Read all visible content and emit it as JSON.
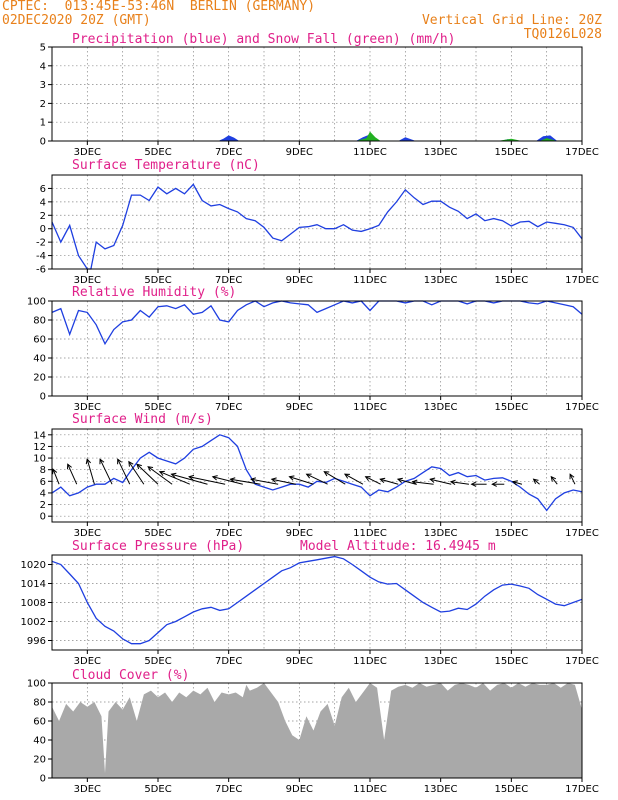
{
  "header": {
    "source_line": "CPTEC:  013:45E-53:46N  BERLIN (GERMANY)",
    "date_line": "02DEC2020 20Z (GMT)",
    "grid_note": "Vertical Grid Line: 20Z",
    "code": "TQ0126L028"
  },
  "colors": {
    "header": "#e8801a",
    "title": "#e0208a",
    "series_line": "#1f3fe0",
    "precip_blue": "#1f3fe0",
    "snow_green": "#22b022",
    "cloud_gray": "#a9a9a9"
  },
  "x_ticks": [
    "3DEC",
    "5DEC",
    "7DEC",
    "9DEC",
    "11DEC",
    "13DEC",
    "15DEC",
    "17DEC"
  ],
  "chart_data": [
    {
      "type": "area",
      "title": "Precipitation (blue) and Snow Fall (green) (mm/h)",
      "ylim": [
        0,
        5
      ],
      "y_ticks": [
        "0",
        "1",
        "2",
        "3",
        "4",
        "5"
      ],
      "series": [
        {
          "name": "Precipitation",
          "x": [
            6.7,
            6.85,
            7.0,
            7.15,
            7.3,
            10.6,
            10.8,
            11.0,
            11.1,
            11.8,
            12.0,
            12.3,
            14.7,
            14.9,
            15.1,
            15.7,
            15.9,
            16.1,
            16.3
          ],
          "values": [
            0,
            0.12,
            0.3,
            0.18,
            0,
            0,
            0.2,
            0.35,
            0,
            0,
            0.2,
            0,
            0,
            0.1,
            0,
            0,
            0.25,
            0.3,
            0
          ]
        },
        {
          "name": "Snow Fall",
          "x": [
            10.6,
            10.9,
            11.0,
            11.15,
            11.3,
            14.6,
            15.0,
            15.3,
            15.8,
            16.0,
            16.3
          ],
          "values": [
            0,
            0.15,
            0.5,
            0.2,
            0,
            0,
            0.12,
            0,
            0,
            0.15,
            0
          ]
        }
      ]
    },
    {
      "type": "line",
      "title": "Surface Temperature (nC)",
      "ylim": [
        -6,
        8
      ],
      "y_ticks": [
        "-6",
        "-4",
        "-2",
        "0",
        "2",
        "4",
        "6"
      ],
      "series": [
        {
          "x": [
            2.0,
            2.25,
            2.5,
            2.75,
            3.0,
            3.1,
            3.25,
            3.5,
            3.75,
            4.0,
            4.25,
            4.5,
            4.75,
            5.0,
            5.25,
            5.5,
            5.75,
            6.0,
            6.25,
            6.5,
            6.75,
            7.0,
            7.25,
            7.5,
            7.75,
            8.0,
            8.25,
            8.5,
            8.75,
            9.0,
            9.25,
            9.5,
            9.75,
            10.0,
            10.25,
            10.5,
            10.75,
            11.0,
            11.25,
            11.5,
            11.75,
            12.0,
            12.25,
            12.5,
            12.75,
            13.0,
            13.25,
            13.5,
            13.75,
            14.0,
            14.25,
            14.5,
            14.75,
            15.0,
            15.25,
            15.5,
            15.75,
            16.0,
            16.25,
            16.5,
            16.75,
            17.0
          ],
          "values": [
            1,
            -2,
            0.5,
            -4,
            -6,
            -6,
            -2,
            -3,
            -2.5,
            0.5,
            5,
            5,
            4.2,
            6.2,
            5.2,
            6,
            5.2,
            6.6,
            4.2,
            3.4,
            3.6,
            3,
            2.5,
            1.5,
            1.2,
            0.2,
            -1.4,
            -1.8,
            -0.8,
            0.2,
            0.3,
            0.6,
            0,
            0,
            0.6,
            -0.2,
            -0.4,
            0,
            0.5,
            2.5,
            4,
            5.8,
            4.6,
            3.6,
            4.1,
            4.1,
            3.2,
            2.6,
            1.5,
            2.2,
            1.2,
            1.5,
            1.2,
            0.4,
            1,
            1.1,
            0.3,
            1,
            0.8,
            0.6,
            0.2,
            -1.5
          ]
        }
      ]
    },
    {
      "type": "line",
      "title": "Relative Humidity (%)",
      "ylim": [
        0,
        100
      ],
      "y_ticks": [
        "0",
        "20",
        "40",
        "60",
        "80",
        "100"
      ],
      "series": [
        {
          "x": [
            2.0,
            2.25,
            2.5,
            2.75,
            3.0,
            3.25,
            3.5,
            3.75,
            4.0,
            4.25,
            4.5,
            4.75,
            5.0,
            5.25,
            5.5,
            5.75,
            6.0,
            6.25,
            6.5,
            6.75,
            7.0,
            7.25,
            7.5,
            7.75,
            8.0,
            8.25,
            8.5,
            8.75,
            9.0,
            9.25,
            9.5,
            9.75,
            10.0,
            10.25,
            10.5,
            10.75,
            11.0,
            11.25,
            11.5,
            11.75,
            12.0,
            12.25,
            12.5,
            12.75,
            13.0,
            13.25,
            13.5,
            13.75,
            14.0,
            14.25,
            14.5,
            14.75,
            15.0,
            15.25,
            15.5,
            15.75,
            16.0,
            16.25,
            16.5,
            16.75,
            17.0
          ],
          "values": [
            88,
            92,
            65,
            90,
            88,
            75,
            55,
            70,
            78,
            80,
            90,
            83,
            94,
            95,
            92,
            96,
            86,
            88,
            95,
            80,
            78,
            90,
            96,
            100,
            94,
            98,
            100,
            98,
            97,
            96,
            88,
            92,
            96,
            100,
            98,
            100,
            90,
            100,
            100,
            100,
            98,
            100,
            100,
            96,
            100,
            100,
            100,
            97,
            100,
            100,
            98,
            100,
            100,
            100,
            98,
            97,
            100,
            98,
            96,
            94,
            86
          ]
        }
      ]
    },
    {
      "type": "line",
      "title": "Surface Wind (m/s)",
      "ylim": [
        -1,
        15
      ],
      "y_ticks": [
        "0",
        "2",
        "4",
        "6",
        "8",
        "10",
        "12",
        "14"
      ],
      "series": [
        {
          "x": [
            2.0,
            2.25,
            2.5,
            2.75,
            3.0,
            3.25,
            3.5,
            3.75,
            4.0,
            4.25,
            4.5,
            4.75,
            5.0,
            5.25,
            5.5,
            5.75,
            6.0,
            6.25,
            6.5,
            6.75,
            7.0,
            7.25,
            7.5,
            7.75,
            8.0,
            8.25,
            8.5,
            8.75,
            9.0,
            9.25,
            9.5,
            9.75,
            10.0,
            10.25,
            10.5,
            10.75,
            11.0,
            11.25,
            11.5,
            11.75,
            12.0,
            12.25,
            12.5,
            12.75,
            13.0,
            13.25,
            13.5,
            13.75,
            14.0,
            14.25,
            14.5,
            14.75,
            15.0,
            15.25,
            15.5,
            15.75,
            16.0,
            16.25,
            16.5,
            16.75,
            17.0
          ],
          "values": [
            4,
            5,
            3.5,
            4,
            5,
            5.5,
            5.5,
            6.5,
            5.8,
            8,
            10,
            11,
            10,
            9.5,
            9,
            10,
            11.5,
            12,
            13,
            14,
            13.5,
            12,
            8,
            5.5,
            5,
            4.5,
            5,
            5.5,
            5.5,
            5,
            6,
            5.8,
            6.5,
            6,
            5.5,
            5,
            3.5,
            4.5,
            4.2,
            5,
            6,
            6.5,
            7.5,
            8.5,
            8.2,
            7,
            7.5,
            6.8,
            7,
            6.2,
            6.5,
            6.6,
            6,
            5,
            3.8,
            3,
            1,
            3,
            4,
            4.5,
            4.2
          ]
        }
      ],
      "wind_vectors": {
        "x": [
          2.2,
          2.7,
          3.2,
          3.7,
          4.2,
          4.6,
          5.0,
          5.4,
          5.9,
          6.4,
          6.9,
          7.4,
          7.9,
          8.4,
          8.9,
          9.4,
          9.8,
          10.3,
          10.8,
          11.3,
          11.8,
          12.3,
          12.8,
          13.3,
          13.8,
          14.3,
          14.8,
          15.3,
          15.8,
          16.3,
          16.8
        ],
        "u": [
          -1,
          -1.5,
          -1.2,
          -2,
          -2,
          -2.5,
          -3.5,
          -4,
          -5,
          -6,
          -6,
          -5,
          -5,
          -4.5,
          -4,
          -4,
          -3.5,
          -3.5,
          -3,
          -2.5,
          -3,
          -3,
          -3.5,
          -3.5,
          -3,
          -2.5,
          -2,
          -1.5,
          -1,
          -1,
          -0.8
        ],
        "v": [
          3,
          4,
          5,
          5,
          5,
          4.5,
          4,
          3.5,
          2.5,
          2,
          1.5,
          1.5,
          1,
          1,
          1,
          1.5,
          2,
          2.5,
          2,
          1.5,
          1,
          1,
          0.5,
          1,
          0.5,
          0,
          0,
          0.5,
          1,
          1.5,
          2
        ]
      }
    },
    {
      "type": "line",
      "title": "Surface Pressure (hPa)",
      "annotation": "Model Altitude: 16.4945 m",
      "ylim": [
        993,
        1023
      ],
      "y_ticks": [
        "996",
        "1002",
        "1008",
        "1014",
        "1020"
      ],
      "series": [
        {
          "x": [
            2.0,
            2.25,
            2.5,
            2.75,
            3.0,
            3.25,
            3.5,
            3.75,
            4.0,
            4.25,
            4.5,
            4.75,
            5.0,
            5.25,
            5.5,
            5.75,
            6.0,
            6.25,
            6.5,
            6.75,
            7.0,
            7.25,
            7.5,
            7.75,
            8.0,
            8.25,
            8.5,
            8.75,
            9.0,
            9.25,
            9.5,
            9.75,
            10.0,
            10.25,
            10.5,
            10.75,
            11.0,
            11.25,
            11.5,
            11.75,
            12.0,
            12.25,
            12.5,
            12.75,
            13.0,
            13.25,
            13.5,
            13.75,
            14.0,
            14.25,
            14.5,
            14.75,
            15.0,
            15.25,
            15.5,
            15.75,
            16.0,
            16.25,
            16.5,
            16.75,
            17.0
          ],
          "values": [
            1021,
            1020,
            1017,
            1014,
            1008,
            1003,
            1000.5,
            999,
            996.5,
            995,
            995,
            996,
            998.5,
            1001,
            1002,
            1003.5,
            1005,
            1006,
            1006.5,
            1005.5,
            1006,
            1008,
            1010,
            1012,
            1014,
            1016,
            1018,
            1019,
            1020.5,
            1021,
            1021.5,
            1022,
            1022.5,
            1021.8,
            1020,
            1018,
            1016,
            1014.5,
            1013.8,
            1014,
            1012,
            1010,
            1008,
            1006.5,
            1005,
            1005.3,
            1006.2,
            1005.8,
            1007.5,
            1010,
            1012,
            1013.5,
            1013.8,
            1013.2,
            1012.5,
            1010.5,
            1009,
            1007.5,
            1007,
            1008,
            1009
          ]
        }
      ]
    },
    {
      "type": "area",
      "title": "Cloud Cover (%)",
      "ylim": [
        0,
        100
      ],
      "y_ticks": [
        "0",
        "20",
        "40",
        "60",
        "80",
        "100"
      ],
      "series": [
        {
          "x": [
            2.0,
            2.2,
            2.4,
            2.6,
            2.8,
            3.0,
            3.2,
            3.4,
            3.5,
            3.6,
            3.8,
            4.0,
            4.2,
            4.4,
            4.6,
            4.8,
            5.0,
            5.2,
            5.4,
            5.6,
            5.8,
            6.0,
            6.2,
            6.4,
            6.6,
            6.8,
            7.0,
            7.2,
            7.4,
            7.5,
            7.6,
            7.8,
            8.0,
            8.2,
            8.4,
            8.6,
            8.8,
            9.0,
            9.2,
            9.4,
            9.6,
            9.8,
            10.0,
            10.2,
            10.4,
            10.6,
            10.8,
            11.0,
            11.2,
            11.4,
            11.6,
            11.8,
            12.0,
            12.2,
            12.4,
            12.6,
            12.8,
            13.0,
            13.2,
            13.4,
            13.6,
            13.8,
            14.0,
            14.2,
            14.4,
            14.6,
            14.8,
            15.0,
            15.2,
            15.4,
            15.6,
            15.8,
            16.0,
            16.2,
            16.4,
            16.6,
            16.8,
            17.0
          ],
          "values": [
            75,
            60,
            78,
            70,
            80,
            75,
            80,
            65,
            5,
            70,
            80,
            72,
            85,
            60,
            88,
            92,
            85,
            90,
            80,
            90,
            85,
            92,
            88,
            95,
            80,
            90,
            88,
            90,
            85,
            98,
            92,
            95,
            100,
            90,
            80,
            60,
            45,
            40,
            65,
            50,
            70,
            78,
            55,
            85,
            95,
            80,
            90,
            100,
            95,
            40,
            92,
            96,
            98,
            95,
            100,
            96,
            98,
            100,
            92,
            98,
            100,
            98,
            95,
            100,
            92,
            98,
            100,
            95,
            100,
            96,
            100,
            98,
            98,
            100,
            95,
            100,
            98,
            72
          ]
        }
      ]
    }
  ]
}
